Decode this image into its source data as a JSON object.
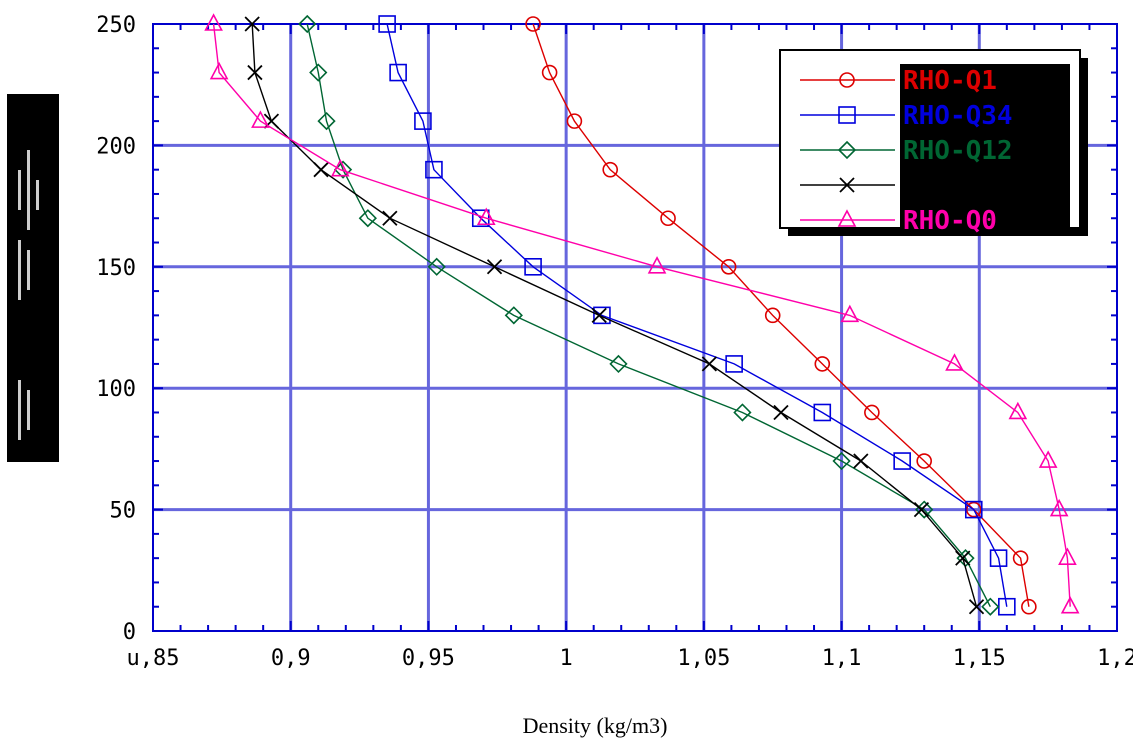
{
  "chart_data": {
    "type": "line",
    "xlabel": "Density (kg/m3)",
    "ylabel": "",
    "xlim": [
      0.85,
      1.2
    ],
    "ylim": [
      0,
      250
    ],
    "x_ticks": [
      0.85,
      0.9,
      0.95,
      1,
      1.05,
      1.1,
      1.15,
      1.2
    ],
    "x_tick_labels": [
      "u,85",
      "0,9",
      "0,95",
      "1",
      "1,05",
      "1,1",
      "1,15",
      "1,2"
    ],
    "y_ticks": [
      0,
      50,
      100,
      150,
      200,
      250
    ],
    "y_tick_labels": [
      "0",
      "50",
      "100",
      "150",
      "200",
      "250"
    ],
    "grid": true,
    "legend_position": "top-right",
    "colors": {
      "grid": "#6666dd",
      "axis": "#0000cc"
    },
    "series": [
      {
        "name": "RHO-Q1",
        "color": "#dd0000",
        "marker": "circle",
        "points": [
          [
            0.988,
            250
          ],
          [
            0.994,
            230
          ],
          [
            1.003,
            210
          ],
          [
            1.016,
            190
          ],
          [
            1.037,
            170
          ],
          [
            1.059,
            150
          ],
          [
            1.075,
            130
          ],
          [
            1.093,
            110
          ],
          [
            1.111,
            90
          ],
          [
            1.13,
            70
          ],
          [
            1.148,
            50
          ],
          [
            1.165,
            30
          ],
          [
            1.168,
            10
          ]
        ]
      },
      {
        "name": "RHO-Q34",
        "color": "#0000dd",
        "marker": "square",
        "points": [
          [
            0.935,
            250
          ],
          [
            0.939,
            230
          ],
          [
            0.948,
            210
          ],
          [
            0.952,
            190
          ],
          [
            0.969,
            170
          ],
          [
            0.988,
            150
          ],
          [
            1.013,
            130
          ],
          [
            1.061,
            110
          ],
          [
            1.093,
            90
          ],
          [
            1.122,
            70
          ],
          [
            1.148,
            50
          ],
          [
            1.157,
            30
          ],
          [
            1.16,
            10
          ]
        ]
      },
      {
        "name": "RHO-Q12",
        "color": "#006633",
        "marker": "diamond",
        "points": [
          [
            0.906,
            250
          ],
          [
            0.91,
            230
          ],
          [
            0.913,
            210
          ],
          [
            0.919,
            190
          ],
          [
            0.928,
            170
          ],
          [
            0.953,
            150
          ],
          [
            0.981,
            130
          ],
          [
            1.019,
            110
          ],
          [
            1.064,
            90
          ],
          [
            1.1,
            70
          ],
          [
            1.13,
            50
          ],
          [
            1.145,
            30
          ],
          [
            1.154,
            10
          ]
        ]
      },
      {
        "name": "",
        "color": "#000000",
        "marker": "x",
        "points": [
          [
            0.886,
            250
          ],
          [
            0.887,
            230
          ],
          [
            0.893,
            210
          ],
          [
            0.911,
            190
          ],
          [
            0.936,
            170
          ],
          [
            0.974,
            150
          ],
          [
            1.012,
            130
          ],
          [
            1.052,
            110
          ],
          [
            1.078,
            90
          ],
          [
            1.107,
            70
          ],
          [
            1.129,
            50
          ],
          [
            1.144,
            30
          ],
          [
            1.149,
            10
          ]
        ]
      },
      {
        "name": "RHO-Q0",
        "color": "#ff00aa",
        "marker": "triangle",
        "points": [
          [
            0.872,
            250
          ],
          [
            0.874,
            230
          ],
          [
            0.889,
            210
          ],
          [
            0.918,
            190
          ],
          [
            0.971,
            170
          ],
          [
            1.033,
            150
          ],
          [
            1.103,
            130
          ],
          [
            1.141,
            110
          ],
          [
            1.164,
            90
          ],
          [
            1.175,
            70
          ],
          [
            1.179,
            50
          ],
          [
            1.182,
            30
          ],
          [
            1.183,
            10
          ]
        ]
      }
    ]
  }
}
